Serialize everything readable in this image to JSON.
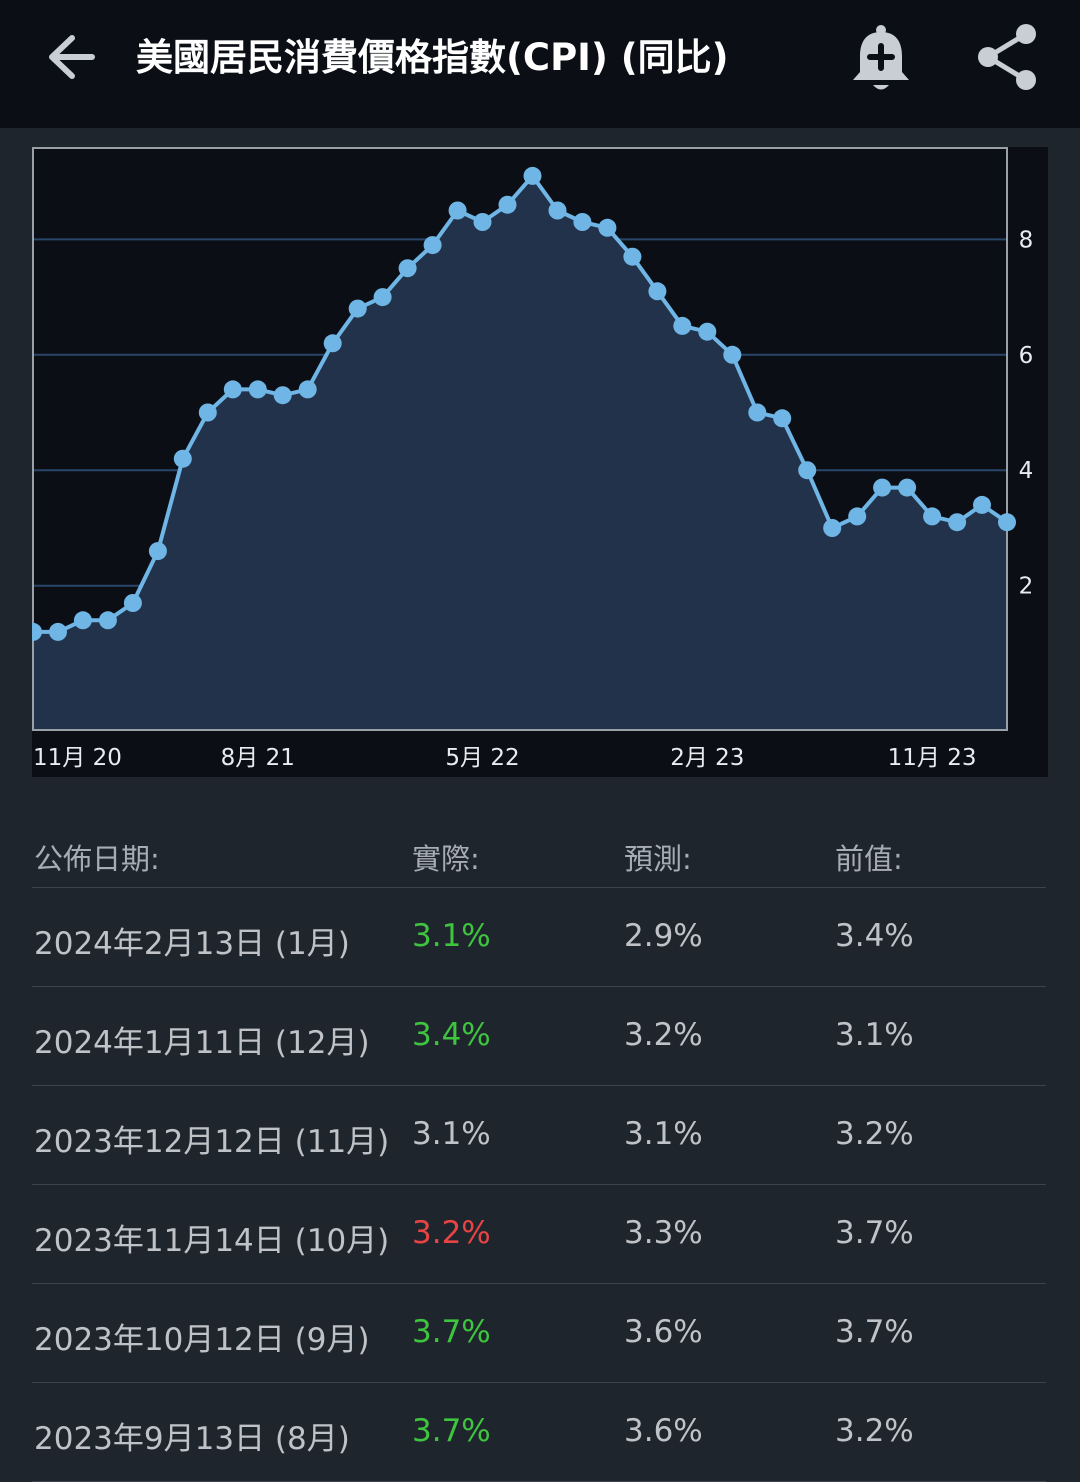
{
  "header": {
    "title": "美國居民消費價格指數(CPI) (同比)",
    "icons": [
      "back-arrow-icon",
      "add-alert-bell-icon",
      "share-icon"
    ]
  },
  "colors": {
    "background": "#1f252d",
    "header_bg": "#0b0f15",
    "line": "#6fb6e6",
    "area": "#22324b",
    "positive": "#3ec43e",
    "negative": "#e94444"
  },
  "chart_data": {
    "type": "area",
    "x_tick_labels": [
      "11月 20",
      "8月 21",
      "5月 22",
      "2月 23",
      "11月 23"
    ],
    "y_tick_labels": [
      "2",
      "4",
      "6",
      "8"
    ],
    "ylim": [
      -0.5,
      9.6
    ],
    "y_axis_position": "right",
    "grid": true,
    "series": [
      {
        "values": [
          1.2,
          1.2,
          1.4,
          1.4,
          1.7,
          2.6,
          4.2,
          5.0,
          5.4,
          5.4,
          5.3,
          5.4,
          6.2,
          6.8,
          7.0,
          7.5,
          7.9,
          8.5,
          8.3,
          8.6,
          9.1,
          8.5,
          8.3,
          8.2,
          7.7,
          7.1,
          6.5,
          6.4,
          6.0,
          5.0,
          4.9,
          4.0,
          3.0,
          3.2,
          3.7,
          3.7,
          3.2,
          3.1,
          3.4,
          3.1
        ]
      }
    ]
  },
  "table": {
    "headers": [
      "公佈日期:",
      "實際:",
      "預測:",
      "前值:"
    ],
    "rows": [
      {
        "date": "2024年2月13日 (1月)",
        "actual": "3.1%",
        "actual_status": "green",
        "forecast": "2.9%",
        "previous": "3.4%"
      },
      {
        "date": "2024年1月11日 (12月)",
        "actual": "3.4%",
        "actual_status": "green",
        "forecast": "3.2%",
        "previous": "3.1%"
      },
      {
        "date": "2023年12月12日 (11月)",
        "actual": "3.1%",
        "actual_status": "neutral",
        "forecast": "3.1%",
        "previous": "3.2%"
      },
      {
        "date": "2023年11月14日 (10月)",
        "actual": "3.2%",
        "actual_status": "red",
        "forecast": "3.3%",
        "previous": "3.7%"
      },
      {
        "date": "2023年10月12日 (9月)",
        "actual": "3.7%",
        "actual_status": "green",
        "forecast": "3.6%",
        "previous": "3.7%"
      },
      {
        "date": "2023年9月13日 (8月)",
        "actual": "3.7%",
        "actual_status": "green",
        "forecast": "3.6%",
        "previous": "3.2%"
      }
    ]
  }
}
